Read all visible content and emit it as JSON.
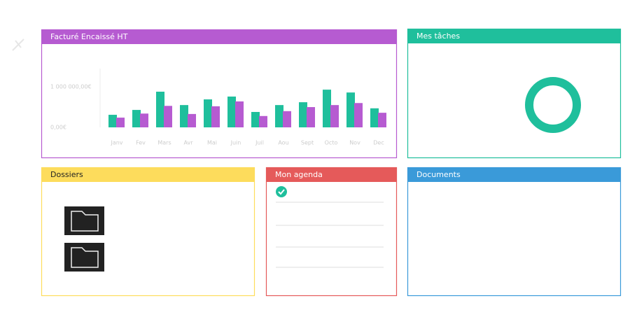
{
  "panels": [
    {
      "title": "Facturé Encaissé HT",
      "color": "#b65bd1"
    },
    {
      "title": "Mes tâches",
      "color": "#1fbf9c"
    },
    {
      "title": "Dossiers",
      "color": "#fddc5c"
    },
    {
      "title": "Mon agenda",
      "color": "#e55a5a"
    },
    {
      "title": "Documents",
      "color": "#3a9ad9"
    }
  ],
  "chart_data": {
    "type": "bar",
    "categories": [
      "Janv",
      "Fev",
      "Mars",
      "Avr",
      "Mai",
      "Juin",
      "Juil",
      "Aou",
      "Sept",
      "Octo",
      "Nov",
      "Dec"
    ],
    "series": [
      {
        "color": "#1fbf9c",
        "values": [
          310000,
          430000,
          880000,
          550000,
          690000,
          760000,
          380000,
          550000,
          620000,
          930000,
          860000,
          470000
        ]
      },
      {
        "color": "#b65bd1",
        "values": [
          240000,
          340000,
          530000,
          330000,
          520000,
          640000,
          280000,
          400000,
          500000,
          550000,
          600000,
          360000
        ]
      }
    ],
    "ylim": [
      0,
      1450000
    ],
    "yticks": [
      {
        "value": 0,
        "label": "0,00€"
      },
      {
        "value": 1000000,
        "label": "1 000 000,00€"
      }
    ]
  }
}
